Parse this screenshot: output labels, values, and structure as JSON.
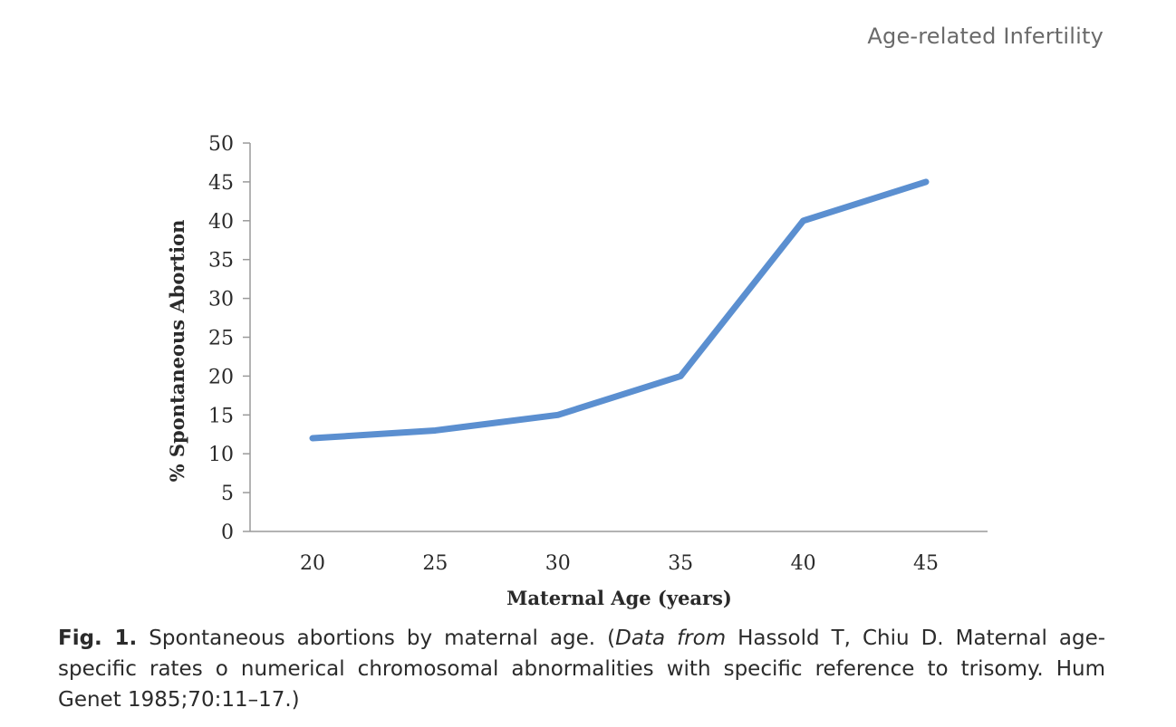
{
  "running_head": "Age-related Infertility",
  "chart_data": {
    "type": "line",
    "x": [
      20,
      25,
      30,
      35,
      40,
      45
    ],
    "series": [
      {
        "values": [
          12,
          13,
          15,
          20,
          40,
          45
        ],
        "color": "#5b8fd0"
      }
    ],
    "xlabel": "Maternal Age (years)",
    "ylabel": "% Spontaneous Abortion",
    "ylim": [
      0,
      50
    ],
    "y_ticks": [
      0,
      5,
      10,
      15,
      20,
      25,
      30,
      35,
      40,
      45,
      50
    ],
    "x_ticks": [
      "20",
      "25",
      "30",
      "35",
      "40",
      "45"
    ],
    "grid": false
  },
  "caption": {
    "label": "Fig. 1.",
    "text_before": "Spontaneous abortions by maternal age. (",
    "italic": "Data from",
    "text_after": "Hassold T, Chiu D. Maternal age-specific rates o numerical chromosomal abnormalities with specific reference to trisomy. Hum Genet 1985;70:11–17.)"
  }
}
